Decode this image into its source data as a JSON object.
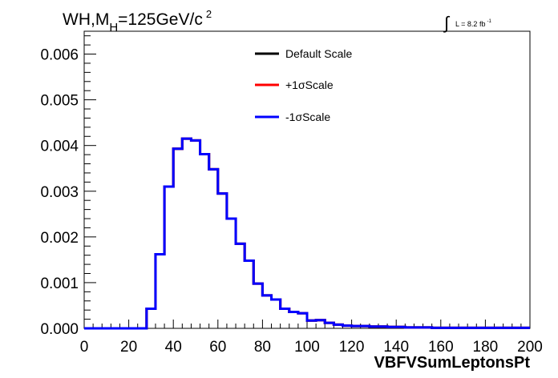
{
  "chart_data": {
    "type": "histogram",
    "title": {
      "main": "WH,M",
      "sub": "H",
      "rest": "=125GeV/c",
      "sup": "2"
    },
    "lumi": {
      "integral": "∫",
      "text": "L = 8.2 fb",
      "sup": "-1"
    },
    "xlabel": "VBFVSumLeptonsPt",
    "ylabel": "",
    "xlim": [
      0,
      200
    ],
    "ylim": [
      0,
      0.0065
    ],
    "xticks": [
      "0",
      "20",
      "40",
      "60",
      "80",
      "100",
      "120",
      "140",
      "160",
      "180",
      "200"
    ],
    "yticks": [
      "0.000",
      "0.001",
      "0.002",
      "0.003",
      "0.004",
      "0.005",
      "0.006"
    ],
    "bin_width": 4,
    "bin_start": 0,
    "series": [
      {
        "name": "Default Scale",
        "color": "#000000",
        "values": [
          0,
          0,
          0,
          0,
          0,
          0,
          0,
          0.00043,
          0.00162,
          0.0031,
          0.00393,
          0.00415,
          0.00411,
          0.00381,
          0.00348,
          0.00295,
          0.0024,
          0.00185,
          0.00148,
          0.00098,
          0.00072,
          0.00063,
          0.00043,
          0.00036,
          0.00033,
          0.00017,
          0.00018,
          0.00012,
          8e-05,
          6e-05,
          5e-05,
          5e-05,
          4e-05,
          4e-05,
          3e-05,
          3e-05,
          2e-05,
          2e-05,
          2e-05,
          1e-05,
          1e-05,
          1e-05,
          1e-05,
          1e-05,
          1e-05,
          1e-05,
          1e-05,
          1e-05,
          1e-05,
          1e-05
        ]
      },
      {
        "name": "+1σScale",
        "color": "#ff0000",
        "values": [
          0,
          0,
          0,
          0,
          0,
          0,
          0,
          0.00043,
          0.00162,
          0.0031,
          0.00393,
          0.00415,
          0.00411,
          0.00381,
          0.00348,
          0.00295,
          0.0024,
          0.00185,
          0.00148,
          0.00098,
          0.00072,
          0.00063,
          0.00043,
          0.00036,
          0.00033,
          0.00017,
          0.00018,
          0.00012,
          8e-05,
          6e-05,
          5e-05,
          5e-05,
          4e-05,
          4e-05,
          3e-05,
          3e-05,
          2e-05,
          2e-05,
          2e-05,
          1e-05,
          1e-05,
          1e-05,
          1e-05,
          1e-05,
          1e-05,
          1e-05,
          1e-05,
          1e-05,
          1e-05,
          1e-05
        ]
      },
      {
        "name": "-1σScale",
        "color": "#0000ff",
        "values": [
          0,
          0,
          0,
          0,
          0,
          0,
          0,
          0.00043,
          0.00162,
          0.0031,
          0.00393,
          0.00415,
          0.00411,
          0.00381,
          0.00348,
          0.00295,
          0.0024,
          0.00185,
          0.00148,
          0.00098,
          0.00072,
          0.00063,
          0.00043,
          0.00036,
          0.00033,
          0.00017,
          0.00018,
          0.00012,
          8e-05,
          6e-05,
          5e-05,
          5e-05,
          4e-05,
          4e-05,
          3e-05,
          3e-05,
          2e-05,
          2e-05,
          2e-05,
          1e-05,
          1e-05,
          1e-05,
          1e-05,
          1e-05,
          1e-05,
          1e-05,
          1e-05,
          1e-05,
          1e-05,
          1e-05
        ]
      }
    ],
    "legend_position": "top-center"
  }
}
